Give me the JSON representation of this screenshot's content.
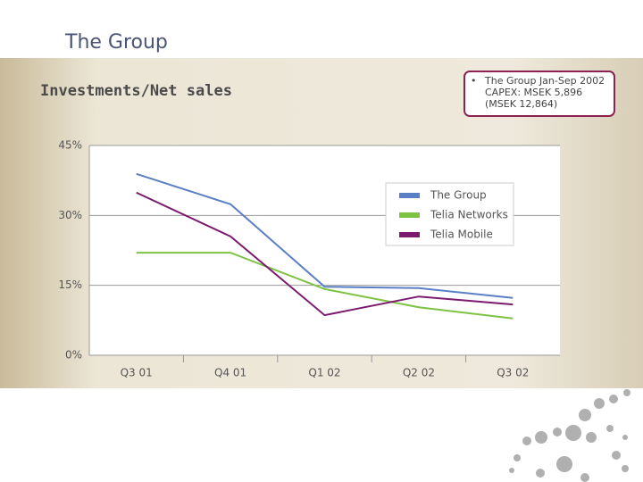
{
  "header": {
    "title": "The Group",
    "subtitle": "Investments/Net sales",
    "note": "The Group Jan-Sep 2002 CAPEX: MSEK 5,896 (MSEK 12,864)"
  },
  "chart_data": {
    "type": "line",
    "categories": [
      "Q3 01",
      "Q4 01",
      "Q1 02",
      "Q2 02",
      "Q3 02"
    ],
    "series": [
      {
        "name": "The Group",
        "color": "#5b7fc4",
        "values": [
          38.9,
          32.4,
          14.7,
          14.4,
          12.3
        ]
      },
      {
        "name": "Telia Networks",
        "color": "#7dc242",
        "values": [
          22,
          22,
          14.2,
          10.3,
          7.9
        ]
      },
      {
        "name": "Telia Mobile",
        "color": "#7b1a6e",
        "values": [
          34.9,
          25.5,
          8.6,
          12.6,
          10.9
        ]
      }
    ],
    "ylim": [
      0,
      45
    ],
    "yticks": [
      {
        "value": 0,
        "label": "0%"
      },
      {
        "value": 15,
        "label": "15%"
      },
      {
        "value": 30,
        "label": "30%"
      },
      {
        "value": 45,
        "label": "45%"
      }
    ],
    "grid": true
  }
}
